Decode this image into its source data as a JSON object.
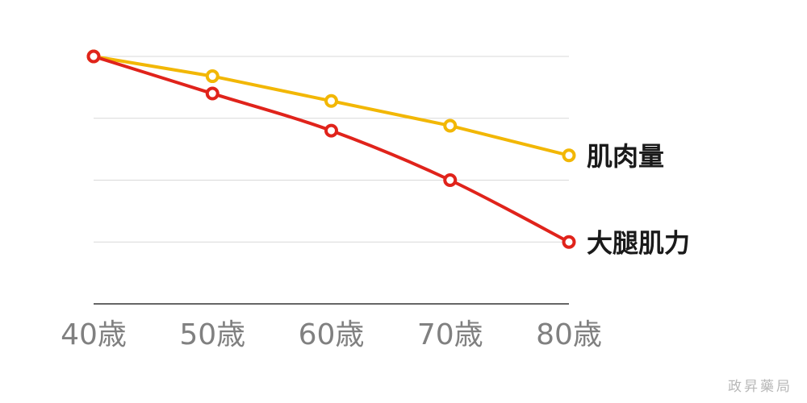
{
  "chart_data": {
    "type": "line",
    "title": "",
    "xlabel": "",
    "ylabel": "",
    "categories": [
      "40歳",
      "50歳",
      "60歳",
      "70歳",
      "80歳"
    ],
    "ylim": [
      0,
      100
    ],
    "yticks": [
      0,
      25,
      50,
      75,
      100
    ],
    "grid": true,
    "series": [
      {
        "name": "肌肉量",
        "color": "#f2b705",
        "values": [
          100,
          92,
          82,
          72,
          60
        ],
        "smooth": false
      },
      {
        "name": "大腿肌力",
        "color": "#e0231b",
        "values": [
          100,
          85,
          70,
          50,
          25
        ],
        "smooth": true
      }
    ]
  },
  "watermark": "政昇藥局"
}
